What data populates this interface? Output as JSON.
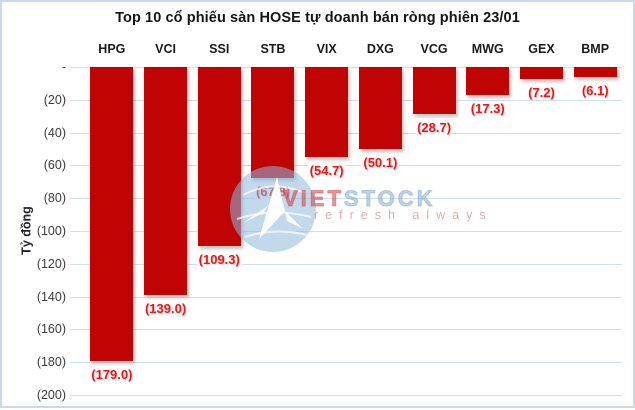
{
  "chart_data": {
    "type": "bar",
    "title": "Top 10 cổ phiếu sàn HOSE tự doanh bán ròng phiên 23/01",
    "categories": [
      "HPG",
      "VCI",
      "SSI",
      "STB",
      "VIX",
      "DXG",
      "VCG",
      "MWG",
      "GEX",
      "BMP"
    ],
    "values": [
      -179.0,
      -139.0,
      -109.3,
      -67.8,
      -54.7,
      -50.1,
      -28.7,
      -17.3,
      -7.2,
      -6.1
    ],
    "value_labels": [
      "(179.0)",
      "(139.0)",
      "(109.3)",
      "(67.8)",
      "(54.7)",
      "(50.1)",
      "(28.7)",
      "(17.3)",
      "(7.2)",
      "(6.1)"
    ],
    "xlabel": "",
    "ylabel": "Tỷ đồng",
    "ylim": [
      -200,
      0
    ],
    "ytick_step": 20,
    "ytick_labels": [
      "-",
      "(20)",
      "(40)",
      "(60)",
      "(80)",
      "(100)",
      "(120)",
      "(140)",
      "(160)",
      "(180)",
      "(200)"
    ],
    "grid": "horizontal",
    "legend": "none",
    "category_axis_position": "top",
    "bar_color": "#c00404",
    "value_label_color": "#f01414",
    "gridline_color": "#cedfef",
    "border_color": "#c7daee"
  },
  "watermark": {
    "brand_part1": "VIET",
    "brand_part2": "STOCK",
    "tagline": "refresh always",
    "logo": "vietstock-bird-icon",
    "logo_circle_color": "#8fb9dc",
    "brand_red": "#d93e3e",
    "brand_blue": "#89aed2"
  }
}
